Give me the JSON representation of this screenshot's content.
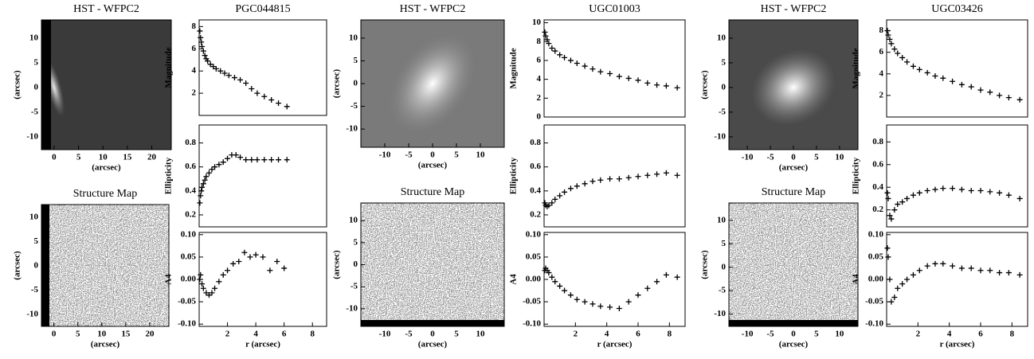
{
  "chart_data": [
    {
      "type": "image",
      "title": "HST - WFPC2",
      "xlabel": "(arcsec)",
      "ylabel": "(arcsec)",
      "xlim": [
        -2.6,
        24
      ],
      "ylim": [
        -12.6,
        13.7
      ],
      "xticks": [
        0,
        5,
        10,
        15,
        20
      ],
      "yticks": [
        -10,
        -5,
        0,
        5,
        10
      ]
    },
    {
      "type": "map",
      "title": "Structure Map",
      "xlabel": "(arcsec)",
      "ylabel": "(arcsec)",
      "xlim": [
        -2.6,
        24
      ],
      "ylim": [
        -12.5,
        12.6
      ],
      "xticks": [
        0,
        5,
        10,
        15,
        20
      ],
      "yticks": [
        -10,
        -5,
        0,
        5,
        10
      ]
    },
    {
      "type": "scatter",
      "title": "PGC044815",
      "ylabel": "Magnitude",
      "xlim": [
        0,
        9
      ],
      "ylim": [
        0,
        8.6
      ],
      "yticks": [
        2,
        4,
        6,
        8
      ],
      "x": [
        0.05,
        0.1,
        0.15,
        0.2,
        0.3,
        0.4,
        0.5,
        0.6,
        0.8,
        1.0,
        1.2,
        1.5,
        1.8,
        2.1,
        2.5,
        2.9,
        3.3,
        3.7,
        4.1,
        4.6,
        5.1,
        5.6,
        6.2
      ],
      "values": [
        7.6,
        7.0,
        6.6,
        6.2,
        5.8,
        5.4,
        5.1,
        4.9,
        4.6,
        4.4,
        4.2,
        4.0,
        3.8,
        3.6,
        3.4,
        3.2,
        2.9,
        2.4,
        2.0,
        1.7,
        1.4,
        1.1,
        0.8
      ]
    },
    {
      "type": "scatter",
      "ylabel": "Ellipticity",
      "xlim": [
        0,
        9
      ],
      "ylim": [
        0.1,
        0.95
      ],
      "yticks": [
        0.2,
        0.4,
        0.6,
        0.8
      ],
      "x": [
        0.05,
        0.1,
        0.15,
        0.2,
        0.3,
        0.4,
        0.5,
        0.7,
        0.9,
        1.1,
        1.4,
        1.7,
        2.0,
        2.3,
        2.6,
        2.9,
        3.3,
        3.7,
        4.1,
        4.6,
        5.1,
        5.6,
        6.2
      ],
      "values": [
        0.3,
        0.36,
        0.4,
        0.43,
        0.46,
        0.49,
        0.52,
        0.55,
        0.58,
        0.6,
        0.62,
        0.64,
        0.67,
        0.7,
        0.7,
        0.68,
        0.66,
        0.66,
        0.66,
        0.66,
        0.66,
        0.66,
        0.66
      ]
    },
    {
      "type": "scatter",
      "ylabel": "A4",
      "xlabel": "r (arcsec)",
      "xlim": [
        0,
        9
      ],
      "ylim": [
        -0.105,
        0.105
      ],
      "xticks": [
        2,
        4,
        6,
        8
      ],
      "yticks": [
        {
          "value": -0.1,
          "label": "-0.10"
        },
        {
          "value": -0.05,
          "label": "-0.05"
        },
        {
          "value": 0,
          "label": "0.00"
        },
        {
          "value": 0.05,
          "label": "0.05"
        },
        {
          "value": 0.1,
          "label": "0.10"
        }
      ],
      "x": [
        0.05,
        0.1,
        0.2,
        0.3,
        0.5,
        0.7,
        0.9,
        1.1,
        1.4,
        1.7,
        2.0,
        2.4,
        2.8,
        3.2,
        3.6,
        4.0,
        4.5,
        5.0,
        5.5,
        6.0
      ],
      "values": [
        0.0,
        0.01,
        -0.01,
        -0.02,
        -0.03,
        -0.035,
        -0.03,
        -0.02,
        -0.005,
        0.01,
        0.02,
        0.035,
        0.04,
        0.06,
        0.05,
        0.055,
        0.05,
        0.02,
        0.04,
        0.025
      ]
    },
    {
      "type": "image",
      "title": "HST - WFPC2",
      "xlabel": "(arcsec)",
      "ylabel": "(arcsec)",
      "xlim": [
        -15,
        15
      ],
      "ylim": [
        -14,
        14
      ],
      "xticks": [
        -10,
        -5,
        0,
        5,
        10
      ],
      "yticks": [
        -10,
        -5,
        0,
        5,
        10
      ]
    },
    {
      "type": "map",
      "title": "Structure Map",
      "xlabel": "(arcsec)",
      "ylabel": "(arcsec)",
      "xlim": [
        -15,
        15
      ],
      "ylim": [
        -14,
        14
      ],
      "xticks": [
        -10,
        -5,
        0,
        5,
        10
      ],
      "yticks": [
        -10,
        -5,
        0,
        5,
        10
      ]
    },
    {
      "type": "scatter",
      "title": "UGC01003",
      "ylabel": "Magnitude",
      "xlim": [
        0,
        9
      ],
      "ylim": [
        0,
        10.3
      ],
      "yticks": [
        0,
        2,
        4,
        6,
        8,
        10
      ],
      "x": [
        0.05,
        0.1,
        0.2,
        0.3,
        0.5,
        0.7,
        1,
        1.3,
        1.7,
        2.1,
        2.6,
        3.1,
        3.6,
        4.2,
        4.8,
        5.4,
        6.0,
        6.6,
        7.2,
        7.8,
        8.5
      ],
      "values": [
        9.0,
        8.6,
        8.2,
        7.8,
        7.3,
        7.0,
        6.6,
        6.3,
        6.0,
        5.7,
        5.4,
        5.1,
        4.8,
        4.6,
        4.3,
        4.1,
        3.9,
        3.6,
        3.4,
        3.3,
        3.1
      ]
    },
    {
      "type": "scatter",
      "ylabel": "Ellipticity",
      "xlim": [
        0,
        9
      ],
      "ylim": [
        0.1,
        0.95
      ],
      "yticks": [
        0.2,
        0.4,
        0.6,
        0.8
      ],
      "x": [
        0.05,
        0.1,
        0.2,
        0.3,
        0.5,
        0.7,
        1,
        1.3,
        1.7,
        2.1,
        2.6,
        3.1,
        3.6,
        4.2,
        4.8,
        5.4,
        6.0,
        6.6,
        7.2,
        7.8,
        8.5
      ],
      "values": [
        0.3,
        0.28,
        0.27,
        0.28,
        0.3,
        0.33,
        0.36,
        0.39,
        0.42,
        0.44,
        0.46,
        0.48,
        0.49,
        0.5,
        0.5,
        0.51,
        0.52,
        0.53,
        0.54,
        0.55,
        0.53
      ]
    },
    {
      "type": "scatter",
      "ylabel": "A4",
      "xlabel": "r (arcsec)",
      "xlim": [
        0,
        9
      ],
      "ylim": [
        -0.105,
        0.105
      ],
      "xticks": [
        2,
        4,
        6,
        8
      ],
      "yticks": [
        {
          "value": -0.1,
          "label": "-0.10"
        },
        {
          "value": -0.05,
          "label": "-0.05"
        },
        {
          "value": 0,
          "label": "0.00"
        },
        {
          "value": 0.05,
          "label": "0.05"
        },
        {
          "value": 0.1,
          "label": "0.10"
        }
      ],
      "x": [
        0.05,
        0.1,
        0.2,
        0.3,
        0.5,
        0.7,
        1,
        1.3,
        1.7,
        2.1,
        2.6,
        3.1,
        3.6,
        4.2,
        4.8,
        5.4,
        6.0,
        6.6,
        7.2,
        7.8,
        8.5
      ],
      "values": [
        0.02,
        0.025,
        0.02,
        0.015,
        0.005,
        -0.005,
        -0.015,
        -0.025,
        -0.035,
        -0.045,
        -0.05,
        -0.055,
        -0.06,
        -0.062,
        -0.065,
        -0.05,
        -0.035,
        -0.02,
        -0.005,
        0.01,
        0.005
      ]
    },
    {
      "type": "image",
      "title": "HST - WFPC2",
      "xlabel": "(arcsec)",
      "ylabel": "(arcsec)",
      "xlim": [
        -14,
        14
      ],
      "ylim": [
        -12.6,
        13.7
      ],
      "xticks": [
        -10,
        -5,
        0,
        5,
        10
      ],
      "yticks": [
        -10,
        -5,
        0,
        5,
        10
      ]
    },
    {
      "type": "map",
      "title": "Structure Map",
      "xlabel": "(arcsec)",
      "ylabel": "(arcsec)",
      "xlim": [
        -14,
        14
      ],
      "ylim": [
        -12.6,
        13.7
      ],
      "xticks": [
        -10,
        -5,
        0,
        5,
        10
      ],
      "yticks": [
        -10,
        -5,
        0,
        5,
        10
      ]
    },
    {
      "type": "scatter",
      "title": "UGC03426",
      "ylabel": "Magnitude",
      "xlim": [
        0,
        9
      ],
      "ylim": [
        0,
        9
      ],
      "yticks": [
        2,
        4,
        6,
        8
      ],
      "x": [
        0.05,
        0.1,
        0.2,
        0.3,
        0.5,
        0.7,
        1,
        1.3,
        1.7,
        2.1,
        2.6,
        3.1,
        3.6,
        4.2,
        4.8,
        5.4,
        6.0,
        6.6,
        7.2,
        7.8,
        8.5
      ],
      "values": [
        8.0,
        7.6,
        7.2,
        6.8,
        6.3,
        5.9,
        5.5,
        5.1,
        4.7,
        4.4,
        4.1,
        3.8,
        3.6,
        3.3,
        3.0,
        2.8,
        2.5,
        2.3,
        2.0,
        1.8,
        1.6
      ]
    },
    {
      "type": "scatter",
      "ylabel": "Ellipticity",
      "xlim": [
        0,
        9
      ],
      "ylim": [
        0.05,
        0.95
      ],
      "yticks": [
        0.2,
        0.4,
        0.6,
        0.8
      ],
      "x": [
        0.05,
        0.1,
        0.2,
        0.3,
        0.5,
        0.7,
        1,
        1.3,
        1.7,
        2.1,
        2.6,
        3.1,
        3.6,
        4.2,
        4.8,
        5.4,
        6.0,
        6.6,
        7.2,
        7.8,
        8.5
      ],
      "values": [
        0.35,
        0.3,
        0.15,
        0.12,
        0.2,
        0.25,
        0.27,
        0.3,
        0.33,
        0.35,
        0.37,
        0.38,
        0.39,
        0.39,
        0.38,
        0.37,
        0.37,
        0.36,
        0.35,
        0.33,
        0.3
      ]
    },
    {
      "type": "scatter",
      "ylabel": "A4",
      "xlabel": "r (arcsec)",
      "xlim": [
        0,
        9
      ],
      "ylim": [
        -0.105,
        0.105
      ],
      "xticks": [
        2,
        4,
        6,
        8
      ],
      "yticks": [
        {
          "value": -0.1,
          "label": "-0.10"
        },
        {
          "value": -0.05,
          "label": "-0.05"
        },
        {
          "value": 0,
          "label": "0.00"
        },
        {
          "value": 0.05,
          "label": "0.05"
        },
        {
          "value": 0.1,
          "label": "0.10"
        }
      ],
      "x": [
        0.05,
        0.1,
        0.2,
        0.3,
        0.5,
        0.7,
        1,
        1.3,
        1.7,
        2.1,
        2.6,
        3.1,
        3.6,
        4.2,
        4.8,
        5.4,
        6.0,
        6.6,
        7.2,
        7.8,
        8.5
      ],
      "values": [
        0.07,
        0.05,
        0.0,
        -0.05,
        -0.04,
        -0.02,
        -0.01,
        0.0,
        0.01,
        0.02,
        0.03,
        0.035,
        0.035,
        0.03,
        0.025,
        0.025,
        0.02,
        0.02,
        0.015,
        0.015,
        0.01
      ]
    }
  ]
}
